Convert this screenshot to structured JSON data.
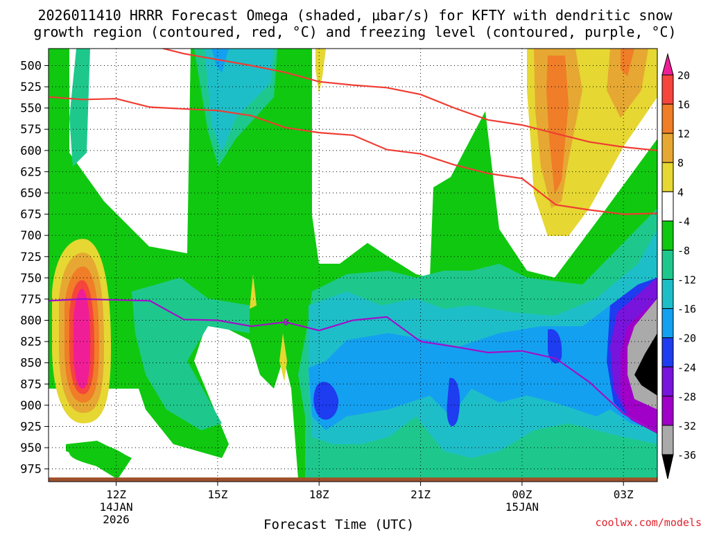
{
  "title_line1": "2026011410 HRRR Forecast Omega (shaded, μbar/s) for KFTY with dendritic snow",
  "title_line2": "growth region (contoured, red, °C) and freezing level (contoured, purple, °C)",
  "credit": "coolwx.com/models",
  "chart_data": {
    "type": "heatmap",
    "title": "2026011410 HRRR Forecast Omega (shaded, μbar/s) for KFTY with dendritic snow growth region (contoured, red, °C) and freezing level (contoured, purple, °C)",
    "xlabel": "Forecast Time (UTC)",
    "ylabel": "",
    "x_range_hours": [
      10,
      28
    ],
    "y_range_mb": [
      480,
      990
    ],
    "y_ticks": [
      "500",
      "525",
      "550",
      "575",
      "600",
      "625",
      "650",
      "675",
      "700",
      "725",
      "750",
      "775",
      "800",
      "825",
      "850",
      "875",
      "900",
      "925",
      "950",
      "975"
    ],
    "x_ticks": [
      {
        "hour": 12,
        "label": "12Z",
        "sub1": "14JAN",
        "sub2": "2026"
      },
      {
        "hour": 15,
        "label": "15Z",
        "sub1": "",
        "sub2": ""
      },
      {
        "hour": 18,
        "label": "18Z",
        "sub1": "",
        "sub2": ""
      },
      {
        "hour": 21,
        "label": "21Z",
        "sub1": "",
        "sub2": ""
      },
      {
        "hour": 24,
        "label": "00Z",
        "sub1": "15JAN",
        "sub2": ""
      },
      {
        "hour": 27,
        "label": "03Z",
        "sub1": "",
        "sub2": ""
      }
    ],
    "colorbar": {
      "labels": [
        "20",
        "16",
        "12",
        "8",
        "4",
        "-4",
        "-8",
        "-12",
        "-16",
        "-20",
        "-24",
        "-28",
        "-32",
        "-36"
      ],
      "colors": [
        "#f01e96",
        "#f5453c",
        "#f07d28",
        "#e6a832",
        "#e6d732",
        "#ffffff",
        "#10c810",
        "#1ec88c",
        "#1ebec8",
        "#14a0f0",
        "#1e3cf0",
        "#7814dc",
        "#a000c8",
        "#aaaaaa",
        "#000000"
      ]
    },
    "freezing_level_label": "0",
    "red_contours_mb": [
      [
        [
          10,
          537
        ],
        [
          11,
          540
        ],
        [
          12,
          539
        ],
        [
          13,
          549
        ],
        [
          15,
          553
        ],
        [
          16,
          559
        ],
        [
          17,
          573
        ],
        [
          18,
          579
        ],
        [
          19,
          582
        ],
        [
          20,
          599
        ],
        [
          21,
          604
        ],
        [
          22,
          617
        ],
        [
          23,
          627
        ],
        [
          24,
          633
        ],
        [
          25,
          664
        ],
        [
          26,
          670
        ],
        [
          27,
          675
        ],
        [
          28,
          674
        ]
      ],
      [
        [
          13,
          476
        ],
        [
          14,
          486
        ],
        [
          15,
          493
        ],
        [
          16,
          500
        ],
        [
          17,
          508
        ],
        [
          18,
          519
        ],
        [
          19,
          523
        ],
        [
          20,
          526
        ],
        [
          21,
          534
        ],
        [
          22,
          550
        ],
        [
          23,
          564
        ],
        [
          24,
          570
        ],
        [
          25,
          580
        ],
        [
          26,
          590
        ],
        [
          27,
          596
        ],
        [
          28,
          600
        ]
      ]
    ],
    "purple_contour_mb": [
      [
        10,
        777
      ],
      [
        11,
        775
      ],
      [
        12,
        776
      ],
      [
        13,
        777
      ],
      [
        14,
        799
      ],
      [
        15,
        800
      ],
      [
        16,
        807
      ],
      [
        17,
        802
      ],
      [
        18,
        812
      ],
      [
        19,
        800
      ],
      [
        20,
        796
      ],
      [
        21,
        825
      ],
      [
        22,
        831
      ],
      [
        23,
        838
      ],
      [
        24,
        836
      ],
      [
        25,
        845
      ],
      [
        26,
        873
      ],
      [
        27,
        910
      ],
      [
        28,
        932
      ]
    ]
  }
}
